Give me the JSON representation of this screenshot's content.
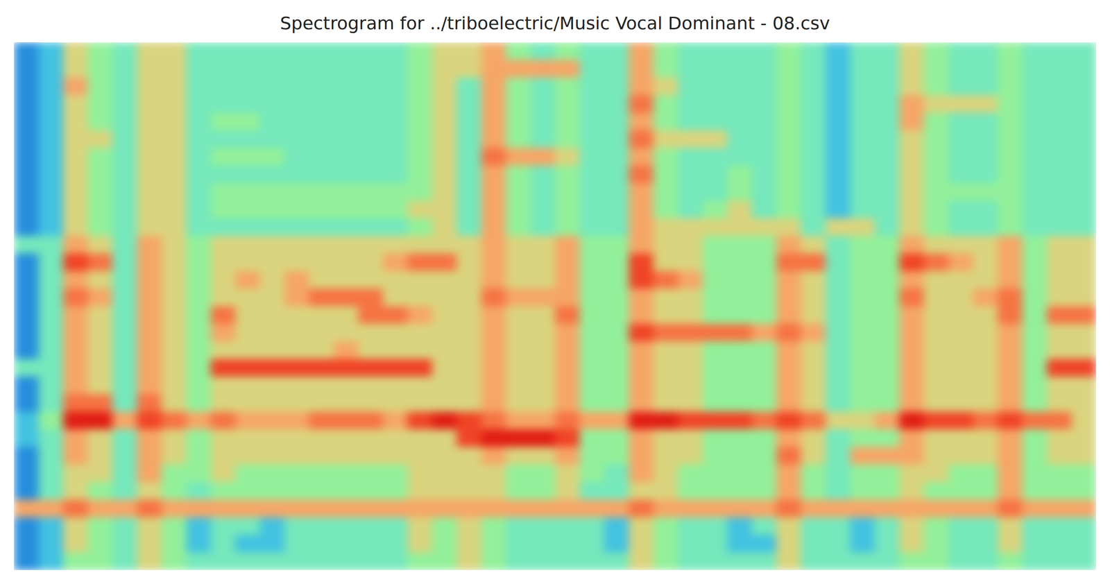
{
  "chart_data": {
    "type": "heatmap",
    "title": "Spectrogram for ../triboelectric/Music Vocal Dominant - 08.csv",
    "tick_labels": false,
    "zlim": [
      0,
      9
    ],
    "z": [
      [
        1,
        2,
        5,
        4,
        3,
        5,
        5,
        3,
        3,
        3,
        3,
        3,
        3,
        3,
        3,
        3,
        4,
        5,
        5,
        6,
        4,
        3,
        4,
        3,
        3,
        6,
        4,
        3,
        3,
        3,
        3,
        4,
        3,
        2,
        3,
        3,
        5,
        4,
        3,
        3,
        4,
        3,
        3,
        3
      ],
      [
        1,
        2,
        5,
        4,
        3,
        5,
        5,
        3,
        3,
        3,
        3,
        3,
        3,
        3,
        3,
        3,
        4,
        5,
        5,
        6,
        6,
        6,
        6,
        3,
        3,
        6,
        4,
        3,
        3,
        3,
        3,
        4,
        3,
        2,
        3,
        3,
        5,
        4,
        3,
        3,
        4,
        3,
        3,
        3
      ],
      [
        1,
        2,
        6,
        4,
        3,
        5,
        5,
        3,
        3,
        3,
        3,
        3,
        3,
        3,
        3,
        3,
        4,
        5,
        3,
        6,
        4,
        3,
        4,
        3,
        3,
        6,
        5,
        3,
        3,
        3,
        3,
        4,
        3,
        2,
        3,
        3,
        5,
        4,
        3,
        3,
        4,
        3,
        3,
        3
      ],
      [
        1,
        2,
        5,
        4,
        3,
        5,
        5,
        3,
        3,
        3,
        3,
        3,
        3,
        3,
        3,
        3,
        4,
        5,
        3,
        6,
        4,
        3,
        4,
        3,
        3,
        7,
        4,
        3,
        3,
        3,
        3,
        4,
        3,
        2,
        3,
        3,
        6,
        5,
        5,
        5,
        4,
        3,
        3,
        3
      ],
      [
        1,
        2,
        5,
        4,
        3,
        5,
        5,
        3,
        4,
        4,
        3,
        3,
        3,
        3,
        3,
        3,
        4,
        5,
        3,
        6,
        4,
        3,
        4,
        3,
        3,
        6,
        4,
        3,
        3,
        3,
        3,
        4,
        3,
        2,
        3,
        3,
        6,
        4,
        3,
        3,
        4,
        3,
        3,
        3
      ],
      [
        1,
        2,
        5,
        5,
        3,
        5,
        5,
        3,
        3,
        3,
        3,
        3,
        3,
        3,
        3,
        3,
        4,
        5,
        3,
        6,
        4,
        3,
        4,
        3,
        3,
        7,
        5,
        5,
        5,
        3,
        3,
        4,
        3,
        2,
        3,
        3,
        5,
        4,
        3,
        3,
        4,
        3,
        3,
        3
      ],
      [
        1,
        2,
        5,
        4,
        3,
        5,
        5,
        3,
        4,
        4,
        4,
        3,
        3,
        3,
        3,
        3,
        4,
        5,
        3,
        7,
        6,
        6,
        5,
        3,
        3,
        6,
        4,
        3,
        3,
        3,
        3,
        4,
        3,
        2,
        3,
        3,
        5,
        4,
        3,
        3,
        4,
        3,
        3,
        3
      ],
      [
        1,
        2,
        5,
        4,
        3,
        5,
        5,
        3,
        3,
        3,
        3,
        3,
        3,
        3,
        3,
        3,
        4,
        5,
        3,
        6,
        4,
        3,
        4,
        3,
        3,
        7,
        4,
        3,
        3,
        4,
        3,
        4,
        3,
        2,
        3,
        3,
        5,
        4,
        3,
        3,
        4,
        3,
        3,
        3
      ],
      [
        1,
        2,
        5,
        4,
        3,
        5,
        5,
        3,
        4,
        4,
        4,
        4,
        4,
        4,
        4,
        4,
        4,
        5,
        3,
        6,
        4,
        3,
        4,
        3,
        3,
        6,
        4,
        3,
        3,
        4,
        3,
        4,
        3,
        2,
        3,
        3,
        5,
        4,
        4,
        4,
        4,
        3,
        3,
        3
      ],
      [
        1,
        2,
        5,
        4,
        3,
        5,
        5,
        3,
        4,
        4,
        4,
        4,
        4,
        4,
        4,
        4,
        5,
        5,
        3,
        6,
        4,
        3,
        4,
        3,
        3,
        6,
        4,
        3,
        4,
        5,
        3,
        4,
        3,
        2,
        3,
        3,
        5,
        4,
        3,
        3,
        4,
        3,
        3,
        3
      ],
      [
        1,
        2,
        5,
        4,
        3,
        5,
        5,
        3,
        3,
        3,
        3,
        3,
        3,
        3,
        3,
        3,
        4,
        5,
        3,
        6,
        4,
        3,
        4,
        3,
        3,
        6,
        5,
        5,
        5,
        5,
        5,
        5,
        3,
        5,
        5,
        3,
        5,
        4,
        3,
        3,
        4,
        3,
        3,
        3
      ],
      [
        3,
        3,
        6,
        5,
        3,
        6,
        5,
        4,
        5,
        5,
        5,
        5,
        5,
        5,
        5,
        5,
        5,
        5,
        5,
        6,
        5,
        5,
        6,
        4,
        4,
        6,
        5,
        5,
        4,
        4,
        4,
        6,
        5,
        3,
        4,
        4,
        6,
        5,
        5,
        5,
        6,
        4,
        5,
        5
      ],
      [
        1,
        3,
        8,
        7,
        3,
        6,
        5,
        4,
        5,
        5,
        5,
        5,
        5,
        5,
        5,
        6,
        7,
        7,
        5,
        6,
        5,
        5,
        6,
        4,
        4,
        8,
        5,
        5,
        4,
        4,
        4,
        7,
        7,
        3,
        4,
        4,
        8,
        7,
        6,
        5,
        6,
        4,
        5,
        5
      ],
      [
        1,
        3,
        6,
        5,
        3,
        6,
        5,
        4,
        5,
        6,
        5,
        6,
        5,
        5,
        5,
        5,
        5,
        5,
        5,
        6,
        5,
        5,
        6,
        4,
        4,
        8,
        7,
        6,
        4,
        4,
        4,
        6,
        5,
        3,
        4,
        4,
        6,
        5,
        5,
        5,
        6,
        4,
        5,
        5
      ],
      [
        1,
        3,
        7,
        6,
        3,
        6,
        5,
        4,
        5,
        5,
        5,
        6,
        7,
        7,
        7,
        5,
        5,
        5,
        5,
        7,
        6,
        6,
        6,
        4,
        4,
        6,
        5,
        5,
        4,
        4,
        4,
        6,
        5,
        3,
        4,
        4,
        7,
        5,
        5,
        6,
        7,
        4,
        5,
        5
      ],
      [
        1,
        3,
        6,
        5,
        3,
        6,
        5,
        4,
        7,
        5,
        5,
        5,
        5,
        5,
        7,
        7,
        6,
        5,
        5,
        6,
        5,
        5,
        7,
        4,
        4,
        6,
        5,
        5,
        4,
        4,
        4,
        6,
        5,
        3,
        4,
        4,
        6,
        5,
        5,
        5,
        7,
        4,
        7,
        7
      ],
      [
        1,
        3,
        6,
        5,
        3,
        6,
        5,
        4,
        6,
        5,
        5,
        5,
        5,
        5,
        5,
        5,
        5,
        5,
        5,
        6,
        5,
        5,
        6,
        4,
        4,
        8,
        7,
        7,
        7,
        7,
        6,
        7,
        6,
        3,
        4,
        4,
        6,
        5,
        5,
        5,
        6,
        4,
        5,
        5
      ],
      [
        1,
        3,
        6,
        5,
        3,
        6,
        5,
        4,
        5,
        5,
        5,
        5,
        5,
        6,
        5,
        5,
        5,
        5,
        5,
        6,
        5,
        5,
        6,
        4,
        4,
        6,
        5,
        5,
        4,
        4,
        4,
        6,
        5,
        3,
        4,
        4,
        6,
        5,
        5,
        5,
        6,
        4,
        5,
        5
      ],
      [
        3,
        3,
        6,
        5,
        3,
        6,
        5,
        4,
        8,
        8,
        8,
        8,
        8,
        8,
        8,
        8,
        8,
        5,
        5,
        6,
        5,
        5,
        6,
        4,
        4,
        6,
        5,
        5,
        4,
        4,
        4,
        6,
        5,
        3,
        4,
        4,
        6,
        5,
        5,
        5,
        6,
        4,
        8,
        8
      ],
      [
        1,
        3,
        6,
        5,
        3,
        6,
        5,
        4,
        5,
        5,
        5,
        5,
        5,
        5,
        5,
        5,
        5,
        5,
        5,
        6,
        5,
        5,
        6,
        4,
        4,
        6,
        5,
        5,
        4,
        4,
        4,
        6,
        5,
        3,
        4,
        4,
        6,
        5,
        5,
        5,
        6,
        4,
        5,
        5
      ],
      [
        1,
        3,
        7,
        7,
        3,
        7,
        5,
        4,
        5,
        5,
        5,
        5,
        5,
        5,
        5,
        5,
        5,
        5,
        5,
        6,
        5,
        5,
        6,
        4,
        4,
        6,
        5,
        5,
        4,
        4,
        4,
        6,
        5,
        3,
        4,
        4,
        6,
        5,
        5,
        5,
        6,
        4,
        5,
        5
      ],
      [
        2,
        4,
        9,
        9,
        6,
        8,
        7,
        6,
        7,
        6,
        6,
        6,
        7,
        7,
        7,
        6,
        8,
        9,
        8,
        7,
        6,
        6,
        7,
        6,
        6,
        9,
        9,
        8,
        8,
        8,
        7,
        8,
        7,
        5,
        5,
        6,
        9,
        8,
        8,
        7,
        8,
        7,
        7,
        5
      ],
      [
        2,
        3,
        6,
        5,
        3,
        6,
        5,
        4,
        5,
        5,
        5,
        5,
        5,
        5,
        5,
        5,
        5,
        5,
        8,
        9,
        9,
        9,
        8,
        4,
        4,
        6,
        5,
        5,
        4,
        4,
        4,
        6,
        5,
        3,
        4,
        4,
        6,
        5,
        5,
        5,
        6,
        4,
        5,
        5
      ],
      [
        1,
        3,
        6,
        5,
        3,
        6,
        5,
        4,
        5,
        5,
        5,
        5,
        5,
        5,
        5,
        5,
        5,
        5,
        5,
        6,
        5,
        5,
        6,
        4,
        4,
        6,
        5,
        5,
        4,
        4,
        4,
        7,
        5,
        3,
        6,
        6,
        6,
        5,
        5,
        5,
        6,
        4,
        5,
        5
      ],
      [
        1,
        3,
        5,
        5,
        3,
        6,
        4,
        4,
        5,
        4,
        4,
        4,
        4,
        4,
        4,
        4,
        5,
        5,
        5,
        5,
        4,
        4,
        5,
        4,
        3,
        6,
        5,
        4,
        4,
        4,
        4,
        6,
        4,
        3,
        4,
        4,
        5,
        5,
        4,
        4,
        6,
        4,
        4,
        4
      ],
      [
        1,
        3,
        5,
        4,
        3,
        5,
        4,
        3,
        4,
        4,
        4,
        4,
        4,
        4,
        4,
        4,
        5,
        5,
        5,
        5,
        4,
        4,
        5,
        3,
        3,
        5,
        5,
        4,
        4,
        4,
        4,
        6,
        4,
        3,
        4,
        4,
        5,
        4,
        4,
        4,
        6,
        4,
        4,
        4
      ],
      [
        6,
        6,
        7,
        6,
        6,
        7,
        6,
        6,
        6,
        6,
        6,
        6,
        6,
        6,
        6,
        6,
        6,
        6,
        6,
        6,
        6,
        6,
        6,
        6,
        6,
        7,
        6,
        6,
        6,
        6,
        6,
        7,
        6,
        6,
        6,
        6,
        6,
        6,
        6,
        6,
        7,
        6,
        6,
        6
      ],
      [
        1,
        2,
        5,
        4,
        3,
        5,
        4,
        2,
        3,
        3,
        2,
        3,
        3,
        3,
        3,
        3,
        5,
        4,
        5,
        4,
        3,
        3,
        3,
        3,
        2,
        5,
        4,
        3,
        3,
        2,
        3,
        5,
        3,
        3,
        2,
        3,
        5,
        4,
        3,
        3,
        5,
        3,
        3,
        3
      ],
      [
        1,
        2,
        5,
        4,
        3,
        5,
        4,
        2,
        3,
        2,
        2,
        3,
        3,
        3,
        3,
        3,
        5,
        4,
        5,
        4,
        3,
        3,
        3,
        3,
        2,
        5,
        4,
        3,
        3,
        2,
        2,
        5,
        3,
        3,
        2,
        3,
        5,
        4,
        3,
        3,
        5,
        3,
        3,
        3
      ],
      [
        1,
        2,
        4,
        4,
        3,
        5,
        4,
        3,
        3,
        3,
        3,
        3,
        3,
        3,
        3,
        3,
        4,
        4,
        5,
        4,
        3,
        3,
        3,
        3,
        3,
        5,
        4,
        3,
        3,
        3,
        3,
        5,
        3,
        3,
        3,
        3,
        4,
        4,
        3,
        3,
        4,
        3,
        3,
        3
      ]
    ]
  }
}
